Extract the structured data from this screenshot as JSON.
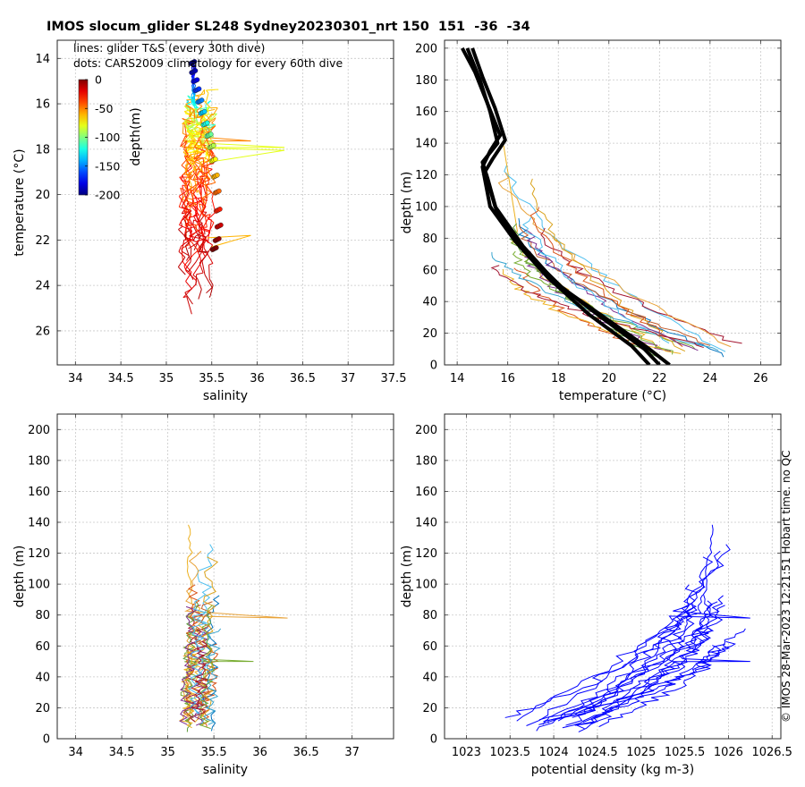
{
  "title": "IMOS slocum_glider SL248 Sydney20230301_nrt 150  151  -36  -34",
  "footer_text": "© IMOS 28-Mar-2023 12:21:51 Hobart time. no QC",
  "chart_data": [
    {
      "type": "scatter",
      "panel": "ts",
      "xlabel": "salinity",
      "ylabel": "temperature (°C)",
      "xlim": [
        33.8,
        37.5
      ],
      "ylim": [
        13.2,
        27.5
      ],
      "xticks": [
        34,
        34.5,
        35,
        35.5,
        36,
        36.5,
        37,
        37.5
      ],
      "xtick_labels": [
        "34",
        "34.5",
        "35",
        "35.5",
        "36",
        "36.5",
        "37",
        "37.5"
      ],
      "yticks": [
        14,
        16,
        18,
        20,
        22,
        24,
        26
      ],
      "ytick_labels": [
        "14",
        "16",
        "18",
        "20",
        "22",
        "24",
        "26"
      ],
      "grid": true,
      "annotations": [
        "lines: glider T&S (every 30th dive)",
        "dots: CARS2009 climatology for every 60th dive"
      ],
      "colorbar": {
        "label": "depth(m)",
        "range": [
          -200,
          0
        ],
        "ticks": [
          0,
          -50,
          -100,
          -150,
          -200
        ],
        "tick_labels": [
          "0",
          "-50",
          "-100",
          "-150",
          "-200"
        ],
        "colormap": "jet",
        "position": "upper-left"
      },
      "glider_lines": {
        "series_count": 18,
        "salinity_range": [
          35.1,
          35.6
        ],
        "temperature_range": [
          15.4,
          26.0
        ],
        "spikes": [
          {
            "salinity": 35.93,
            "temperature": 21.8
          },
          {
            "salinity": 36.3,
            "temperature": 18.05
          }
        ]
      },
      "climatology_dots": [
        {
          "salinity": 35.28,
          "temperature": 14.2,
          "depth": -200
        },
        {
          "salinity": 35.29,
          "temperature": 14.6,
          "depth": -190
        },
        {
          "salinity": 35.31,
          "temperature": 15.0,
          "depth": -180
        },
        {
          "salinity": 35.33,
          "temperature": 15.4,
          "depth": -165
        },
        {
          "salinity": 35.36,
          "temperature": 15.9,
          "depth": -150
        },
        {
          "salinity": 35.39,
          "temperature": 16.4,
          "depth": -135
        },
        {
          "salinity": 35.42,
          "temperature": 16.9,
          "depth": -120
        },
        {
          "salinity": 35.46,
          "temperature": 17.4,
          "depth": -105
        },
        {
          "salinity": 35.49,
          "temperature": 17.9,
          "depth": -90
        },
        {
          "salinity": 35.51,
          "temperature": 18.5,
          "depth": -75
        },
        {
          "salinity": 35.53,
          "temperature": 19.2,
          "depth": -60
        },
        {
          "salinity": 35.55,
          "temperature": 19.9,
          "depth": -45
        },
        {
          "salinity": 35.56,
          "temperature": 20.7,
          "depth": -30
        },
        {
          "salinity": 35.57,
          "temperature": 21.4,
          "depth": -15
        },
        {
          "salinity": 35.55,
          "temperature": 22.0,
          "depth": -5
        },
        {
          "salinity": 35.52,
          "temperature": 22.4,
          "depth": 0
        }
      ]
    },
    {
      "type": "line",
      "panel": "temperature-depth",
      "xlabel": "temperature (°C)",
      "ylabel": "depth (m)",
      "xlim": [
        13.5,
        26.8
      ],
      "ylim": [
        205,
        0
      ],
      "xticks": [
        14,
        16,
        18,
        20,
        22,
        24,
        26
      ],
      "xtick_labels": [
        "14",
        "16",
        "18",
        "20",
        "22",
        "24",
        "26"
      ],
      "yticks": [
        0,
        20,
        40,
        60,
        80,
        100,
        120,
        140,
        160,
        180,
        200
      ],
      "ytick_labels": [
        "0",
        "20",
        "40",
        "60",
        "80",
        "100",
        "120",
        "140",
        "160",
        "180",
        "200"
      ],
      "grid": true,
      "climatology_profiles": [
        {
          "temperature": [
            22.4,
            21.6,
            20.0,
            18.2,
            16.8,
            15.6,
            15.2,
            15.0,
            15.6,
            15.3,
            14.9,
            14.4
          ],
          "depth": [
            0,
            10,
            28,
            48,
            70,
            95,
            118,
            128,
            140,
            160,
            180,
            200
          ]
        },
        {
          "temperature": [
            22.0,
            21.4,
            19.7,
            17.9,
            16.6,
            15.5,
            15.1,
            15.4,
            15.9,
            15.5,
            15.0,
            14.6
          ],
          "depth": [
            0,
            10,
            30,
            52,
            75,
            100,
            122,
            130,
            142,
            162,
            182,
            200
          ]
        },
        {
          "temperature": [
            21.6,
            20.9,
            19.2,
            17.6,
            16.3,
            15.3,
            15.0,
            15.3,
            15.7,
            15.2,
            14.7,
            14.2
          ],
          "depth": [
            0,
            12,
            32,
            55,
            78,
            100,
            125,
            135,
            145,
            165,
            185,
            200
          ]
        }
      ],
      "glider_profiles": {
        "series_count": 18,
        "temperature_range": [
          15.4,
          26.0
        ],
        "depth_range": [
          5,
          140
        ]
      }
    },
    {
      "type": "line",
      "panel": "salinity-depth",
      "xlabel": "salinity",
      "ylabel": "depth (m)",
      "xlim": [
        33.8,
        37.45
      ],
      "ylim": [
        210,
        0
      ],
      "xticks": [
        34,
        34.5,
        35,
        35.5,
        36,
        36.5,
        37
      ],
      "xtick_labels": [
        "34",
        "34.5",
        "35",
        "35.5",
        "36",
        "36.5",
        "37"
      ],
      "yticks": [
        0,
        20,
        40,
        60,
        80,
        100,
        120,
        140,
        160,
        180,
        200
      ],
      "ytick_labels": [
        "0",
        "20",
        "40",
        "60",
        "80",
        "100",
        "120",
        "140",
        "160",
        "180",
        "200"
      ],
      "grid": true,
      "glider_profiles": {
        "series_count": 18,
        "salinity_range": [
          35.1,
          35.6
        ],
        "depth_range": [
          0,
          141
        ],
        "spikes": [
          {
            "salinity": 35.93,
            "depth": 50
          },
          {
            "salinity": 36.3,
            "depth": 78
          }
        ]
      }
    },
    {
      "type": "line",
      "panel": "density-depth",
      "xlabel": "potential density (kg m-3)",
      "ylabel": "depth (m)",
      "xlim": [
        1022.75,
        1026.6
      ],
      "ylim": [
        210,
        0
      ],
      "xticks": [
        1023,
        1023.5,
        1024,
        1024.5,
        1025,
        1025.5,
        1026,
        1026.5
      ],
      "xtick_labels": [
        "1023",
        "1023.5",
        "1024",
        "1024.5",
        "1025",
        "1025.5",
        "1026",
        "1026.5"
      ],
      "yticks": [
        0,
        20,
        40,
        60,
        80,
        100,
        120,
        140,
        160,
        180,
        200
      ],
      "ytick_labels": [
        "0",
        "20",
        "40",
        "60",
        "80",
        "100",
        "120",
        "140",
        "160",
        "180",
        "200"
      ],
      "grid": true,
      "line_color": "#0000ff",
      "glider_profiles": {
        "series_count": 18,
        "density_range": [
          1023.1,
          1026.2
        ],
        "depth_range": [
          0,
          141
        ],
        "spikes": [
          {
            "density": 1026.25,
            "depth": 78
          }
        ]
      }
    }
  ]
}
